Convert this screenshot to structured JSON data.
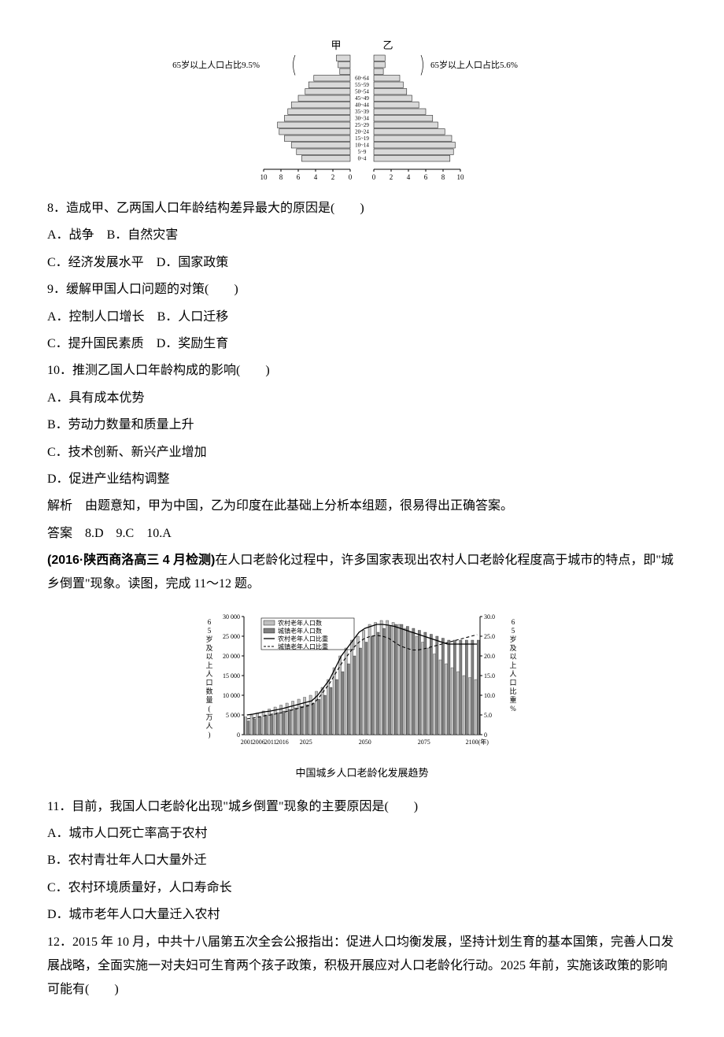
{
  "pyramid": {
    "label_jia": "甲",
    "label_yi": "乙",
    "left_anno": "65岁以上人口占比9.5%",
    "right_anno": "65岁以上人口占比5.6%",
    "age_labels": [
      "60~64",
      "55~59",
      "50~54",
      "45~49",
      "40~44",
      "35~39",
      "30~34",
      "25~29",
      "20~24",
      "15~19",
      "10~14",
      "5~9",
      "0~4"
    ],
    "ticks_left": [
      "10",
      "8",
      "6",
      "4",
      "2",
      "0"
    ],
    "ticks_right": [
      "0",
      "2",
      "4",
      "6",
      "8",
      "10"
    ],
    "jia_top": [
      1.6,
      1.4,
      1.2
    ],
    "yi_top": [
      1.3,
      1.3,
      1.1
    ],
    "jia_bars": [
      4.2,
      4.8,
      5.2,
      6.0,
      6.8,
      7.2,
      7.6,
      8.4,
      8.2,
      7.6,
      6.8,
      6.2,
      5.6
    ],
    "yi_bars": [
      3.0,
      3.4,
      3.8,
      4.4,
      5.2,
      6.0,
      6.8,
      7.4,
      8.2,
      9.0,
      9.4,
      9.2,
      8.8
    ],
    "bar_fill": "#d9d9d9",
    "bar_stroke": "#000000",
    "text_color": "#000000"
  },
  "q8": {
    "stem": "8．造成甲、乙两国人口年龄结构差异最大的原因是(　　)",
    "A": "A．战争",
    "B": "B．自然灾害",
    "C": "C．经济发展水平",
    "D": "D．国家政策"
  },
  "q9": {
    "stem": "9．缓解甲国人口问题的对策(　　)",
    "A": "A．控制人口增长",
    "B": "B．人口迁移",
    "C": "C．提升国民素质",
    "D": "D．奖励生育"
  },
  "q10": {
    "stem": "10．推测乙国人口年龄构成的影响(　　)",
    "A": "A．具有成本优势",
    "B": "B．劳动力数量和质量上升",
    "C": "C．技术创新、新兴产业增加",
    "D": "D．促进产业结构调整"
  },
  "explanation": "解析　由题意知，甲为中国，乙为印度在此基础上分析本组题，很易得出正确答案。",
  "answer_line": "答案　8.D　9.C　10.A",
  "passage2_source": "(2016·陕西商洛高三 4 月检测)",
  "passage2_rest": "在人口老龄化过程中，许多国家表现出农村人口老龄化程度高于城市的特点，即\"城乡倒置\"现象。读图，完成 11～12 题。",
  "aging_chart": {
    "y_left_label": "65岁及以上人口数量(万人)",
    "y_right_label": "65岁及以上人口比重%",
    "y_left_ticks": [
      "30 000",
      "25 000",
      "20 000",
      "15 000",
      "10 000",
      "5 000",
      "0"
    ],
    "y_right_ticks": [
      "30.0",
      "25.0",
      "20.0",
      "15.0",
      "10.0",
      "5.0",
      "0"
    ],
    "x_ticks": [
      "2001",
      "2006",
      "2011",
      "2016",
      "2025",
      "2050",
      "2075",
      "2100(年)"
    ],
    "legend": {
      "l1": "农村老年人口数",
      "l2": "城镇老年人口数",
      "l3": "农村老年人口比重",
      "l4": "城镇老年人口比重"
    },
    "caption": "中国城乡人口老龄化发展趋势",
    "rural_count": [
      4.5,
      5,
      5.5,
      6,
      6.5,
      7,
      7.5,
      8,
      8.5,
      9,
      9.5,
      10,
      11,
      12,
      14,
      17,
      20,
      22,
      24,
      25,
      26.5,
      28,
      28.5,
      29,
      29,
      28.5,
      28,
      27,
      26,
      25,
      23.5,
      22,
      20.5,
      19,
      18,
      17,
      16,
      15,
      14.5,
      14
    ],
    "urban_count": [
      3.5,
      4,
      4.5,
      5,
      5.3,
      5.6,
      6,
      6.4,
      6.8,
      7.2,
      7.6,
      8,
      9,
      10,
      12,
      14,
      16,
      18,
      20,
      22,
      23.5,
      25,
      26,
      27,
      27.5,
      28,
      28,
      27.5,
      27,
      26.5,
      26,
      25.5,
      25,
      24.5,
      24,
      24,
      24,
      24,
      24,
      24
    ],
    "rural_ratio": [
      5,
      5.2,
      5.5,
      5.8,
      6,
      6.3,
      6.6,
      7,
      7.4,
      7.8,
      8.2,
      8.6,
      10,
      12,
      14,
      17,
      20,
      22,
      24,
      26,
      27,
      27.5,
      28,
      28,
      27.8,
      27.5,
      27,
      26.5,
      26,
      25.5,
      25,
      24.5,
      24,
      23.5,
      23,
      23,
      23,
      23,
      23,
      23
    ],
    "urban_ratio": [
      4,
      4.2,
      4.5,
      4.8,
      5,
      5.3,
      5.6,
      6,
      6.4,
      6.8,
      7.2,
      7.6,
      9,
      11,
      13,
      15.5,
      18,
      20,
      22,
      23.5,
      24.5,
      25,
      25.2,
      25,
      24.5,
      23.5,
      22.5,
      22,
      21.5,
      21.5,
      21.8,
      22.2,
      22.6,
      23,
      23.4,
      23.8,
      24.2,
      24.6,
      25,
      25.4
    ],
    "rural_bar_fill": "#bfbfbf",
    "urban_bar_fill": "#808080",
    "axis_color": "#000000",
    "bg": "#ffffff"
  },
  "q11": {
    "stem": "11．目前，我国人口老龄化出现\"城乡倒置\"现象的主要原因是(　　)",
    "A": "A．城市人口死亡率高于农村",
    "B": "B．农村青壮年人口大量外迁",
    "C": "C．农村环境质量好，人口寿命长",
    "D": "D．城市老年人口大量迁入农村"
  },
  "q12": {
    "stem": "12．2015 年 10 月，中共十八届第五次全会公报指出：促进人口均衡发展，坚持计划生育的基本国策，完善人口发展战略，全面实施一对夫妇可生育两个孩子政策，积极开展应对人口老龄化行动。2025 年前，实施该政策的影响可能有(　　)"
  }
}
